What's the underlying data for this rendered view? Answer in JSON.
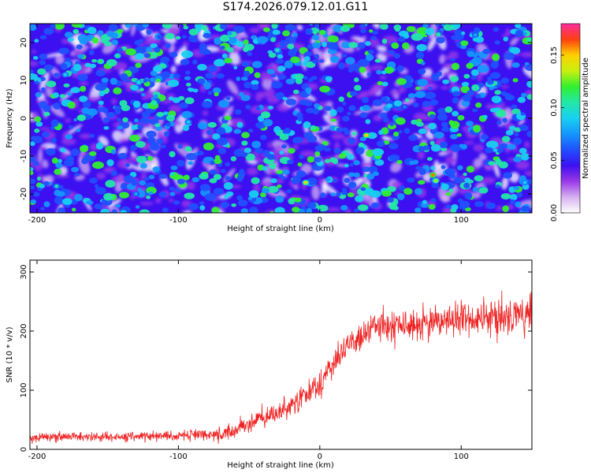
{
  "title": "S174.2026.079.12.01.G11",
  "colors": {
    "snr_line": "#ee2222",
    "axis": "#000000",
    "colormap": [
      "#ffffff",
      "#d6b0f0",
      "#9a38e8",
      "#3c10f0",
      "#2050ff",
      "#1496ff",
      "#18d0f0",
      "#22e8a8",
      "#30f030",
      "#c8f010",
      "#ffd000",
      "#ff4010",
      "#ff2ca0"
    ]
  },
  "chart_data": [
    {
      "type": "heatmap",
      "title": "S174.2026.079.12.01.G11",
      "xlabel": "Height of straight line (km)",
      "ylabel": "Frequency (Hz)",
      "xlim": [
        -205,
        150
      ],
      "ylim": [
        -25,
        25
      ],
      "xticks": [
        -200,
        -100,
        0,
        100
      ],
      "yticks": [
        -20,
        -10,
        0,
        10,
        20
      ],
      "colorbar": {
        "label": "Normalized spectral amplitude",
        "range": [
          0.0,
          0.18
        ],
        "ticks": [
          "0.00",
          "0.05",
          "0.10",
          "0.15"
        ]
      },
      "hotspots": [
        {
          "x": -155,
          "y": 15,
          "amp": 0.12
        },
        {
          "x": -143,
          "y": 16.5,
          "amp": 0.11
        },
        {
          "x": -128,
          "y": 9.5,
          "amp": 0.1
        },
        {
          "x": -180,
          "y": 11.5,
          "amp": 0.09
        },
        {
          "x": -93,
          "y": -1,
          "amp": 0.09
        },
        {
          "x": -30,
          "y": 18,
          "amp": 0.1
        },
        {
          "x": -10,
          "y": -17,
          "amp": 0.14
        },
        {
          "x": 33,
          "y": -4.5,
          "amp": 0.15
        },
        {
          "x": 80,
          "y": -15,
          "amp": 0.16
        },
        {
          "x": 82,
          "y": -16.5,
          "amp": 0.13
        },
        {
          "x": 145,
          "y": -17,
          "amp": 0.09
        },
        {
          "x": -130,
          "y": -20,
          "amp": 0.08
        },
        {
          "x": 110,
          "y": 22,
          "amp": 0.08
        },
        {
          "x": 60,
          "y": 3,
          "amp": 0.07
        }
      ]
    },
    {
      "type": "line",
      "xlabel": "Height of straight line (km)",
      "ylabel": "SNR (10 * v/v)",
      "xlim": [
        -205,
        150
      ],
      "ylim": [
        0,
        320
      ],
      "xticks": [
        -200,
        -100,
        0,
        100
      ],
      "yticks": [
        0,
        100,
        200,
        300
      ],
      "series": [
        {
          "name": "SNR",
          "x_start": -205,
          "x_end": 150,
          "trend_x": [
            -205,
            -120,
            -100,
            -70,
            -50,
            -30,
            -10,
            0,
            10,
            20,
            30,
            40,
            60,
            100,
            150
          ],
          "trend_y": [
            20,
            22,
            23,
            25,
            45,
            60,
            90,
            110,
            145,
            180,
            195,
            205,
            210,
            220,
            230
          ],
          "noise_amplitude": [
            8,
            8,
            9,
            12,
            15,
            18,
            20,
            22,
            22,
            22,
            25,
            28,
            28,
            30,
            35
          ]
        }
      ]
    }
  ]
}
